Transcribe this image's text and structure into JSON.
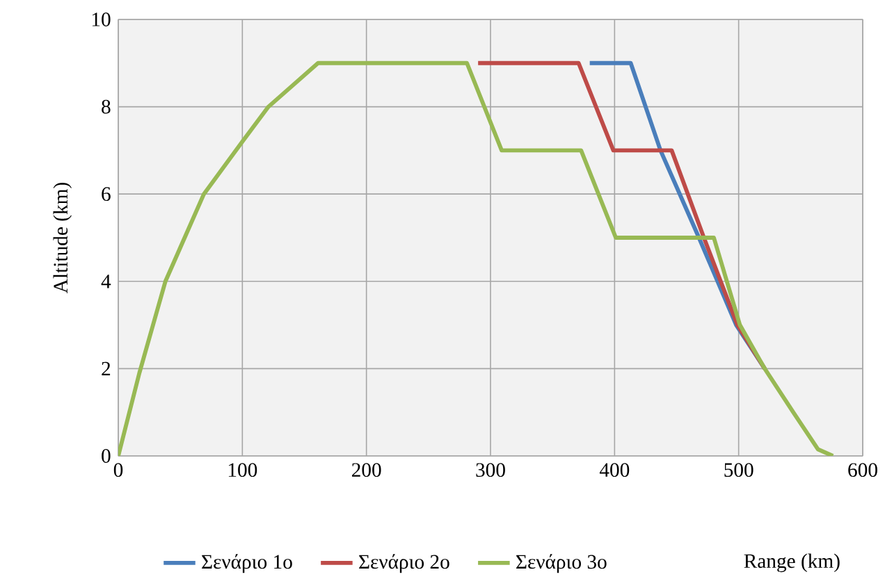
{
  "chart_data": {
    "type": "line",
    "xlabel": "Range (km)",
    "ylabel": "Altitude (km)",
    "xlim": [
      0,
      600
    ],
    "xticks": [
      0,
      100,
      200,
      300,
      400,
      500,
      600
    ],
    "ylim": [
      0,
      10
    ],
    "yticks": [
      0,
      2,
      4,
      6,
      8,
      10
    ],
    "grid": true,
    "legend": "bottom",
    "marker": "none",
    "line_style": "solid",
    "series": [
      {
        "name": "Σενάριο 1ο",
        "color": "#4a7ebb",
        "x": [
          380,
          413,
          437,
          468,
          498,
          521
        ],
        "values": [
          9,
          9,
          7,
          5,
          3,
          2
        ]
      },
      {
        "name": "Σενάριο 2ο",
        "color": "#be4b48",
        "x": [
          290,
          371,
          399,
          446,
          472,
          499,
          521
        ],
        "values": [
          9,
          9,
          7,
          7,
          5,
          3,
          2
        ]
      },
      {
        "name": "Σενάριο 3ο",
        "color": "#98b954",
        "x": [
          0,
          17,
          38,
          69,
          100,
          121,
          161,
          281,
          309,
          373,
          401,
          480,
          501,
          521,
          544,
          564,
          576
        ],
        "values": [
          0,
          1.9,
          4,
          6,
          7.2,
          8,
          9,
          9,
          7,
          7,
          5,
          5,
          3,
          2,
          1,
          0.15,
          0
        ]
      }
    ]
  }
}
